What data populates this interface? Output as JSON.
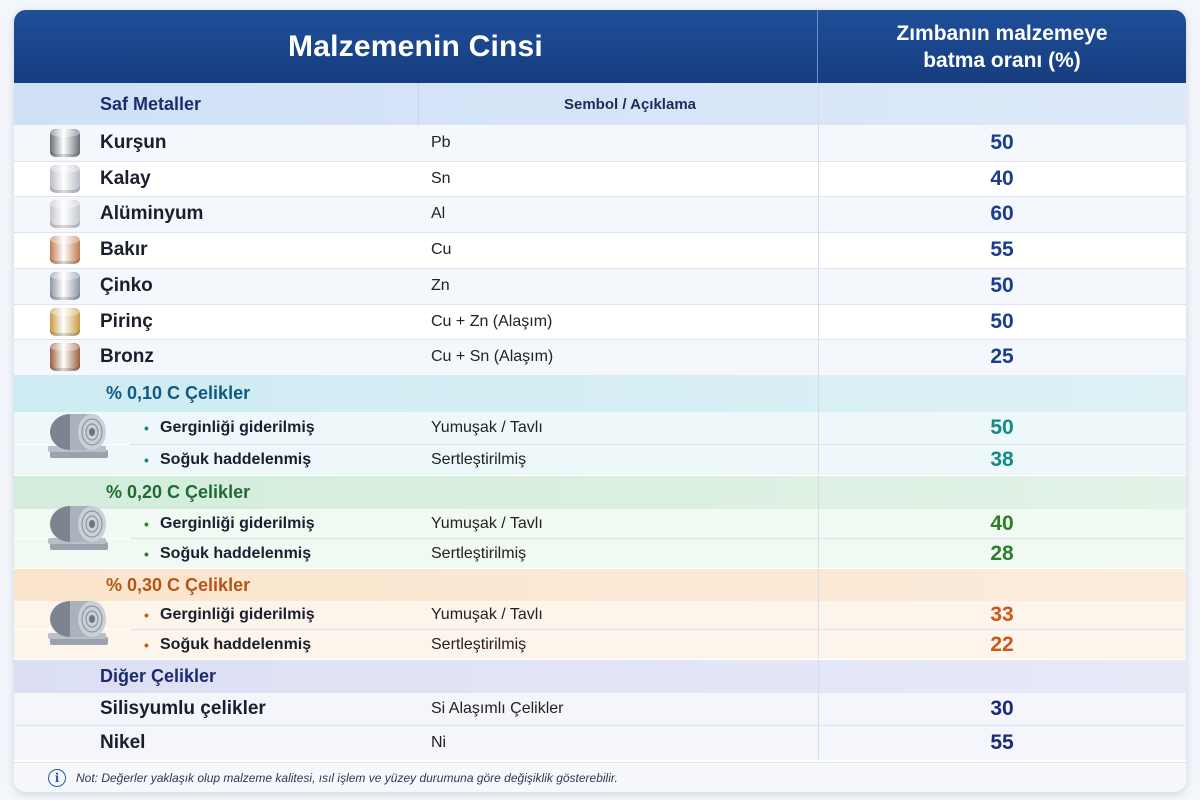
{
  "header": {
    "title": "Malzemenin Cinsi",
    "value_title_line1": "Zımbanın malzemeye",
    "value_title_line2": "batma oranı (%)"
  },
  "pure_metals": {
    "title": "Saf Metaller",
    "symbol_header": "Sembol / Açıklama",
    "rows": [
      {
        "name": "Kurşun",
        "symbol": "Pb",
        "value": "50",
        "icon": "lead-disc-icon",
        "color": "#6b7078"
      },
      {
        "name": "Kalay",
        "symbol": "Sn",
        "value": "40",
        "icon": "tin-disc-icon",
        "color": "#b9bdc4"
      },
      {
        "name": "Alüminyum",
        "symbol": "Al",
        "value": "60",
        "icon": "aluminium-disc-icon",
        "color": "#c4c7cc"
      },
      {
        "name": "Bakır",
        "symbol": "Cu",
        "value": "55",
        "icon": "copper-disc-icon",
        "color": "#c07a4e"
      },
      {
        "name": "Çinko",
        "symbol": "Zn",
        "value": "50",
        "icon": "zinc-disc-icon",
        "color": "#8a96a6"
      },
      {
        "name": "Pirinç",
        "symbol": "Cu + Zn (Alaşım)",
        "value": "50",
        "icon": "brass-disc-icon",
        "color": "#c99a45"
      },
      {
        "name": "Bronz",
        "symbol": "Cu + Sn (Alaşım)",
        "value": "25",
        "icon": "bronze-disc-icon",
        "color": "#9a5f3c"
      }
    ]
  },
  "steel_010": {
    "title": "% 0,10 C Çelikler",
    "color": "#0f5a82",
    "rows": [
      {
        "name": "Gerginliği giderilmiş",
        "symbol": "Yumuşak / Tavlı",
        "value": "50"
      },
      {
        "name": "Soğuk haddelenmiş",
        "symbol": "Sertleştirilmiş",
        "value": "38"
      }
    ]
  },
  "steel_020": {
    "title": "% 0,20 C Çelikler",
    "color": "#1f6b35",
    "rows": [
      {
        "name": "Gerginliği giderilmiş",
        "symbol": "Yumuşak / Tavlı",
        "value": "40"
      },
      {
        "name": "Soğuk haddelenmiş",
        "symbol": "Sertleştirilmiş",
        "value": "28"
      }
    ]
  },
  "steel_030": {
    "title": "% 0,30 C Çelikler",
    "color": "#b3561a",
    "rows": [
      {
        "name": "Gerginliği giderilmiş",
        "symbol": "Yumuşak / Tavlı",
        "value": "33"
      },
      {
        "name": "Soğuk haddelenmiş",
        "symbol": "Sertleştirilmiş",
        "value": "22"
      }
    ]
  },
  "other_steels": {
    "title": "Diğer Çelikler",
    "rows": [
      {
        "name": "Silisyumlu çelikler",
        "symbol": "Si Alaşımlı Çelikler",
        "value": "30"
      },
      {
        "name": "Nikel",
        "symbol": "Ni",
        "value": "55"
      }
    ]
  },
  "note": {
    "icon": "info-icon",
    "text": "Not: Değerler yaklaşık olup malzeme kalitesi, ısıl işlem ve yüzey durumuna göre değişiklik gösterebilir."
  },
  "colors": {
    "header": "#1f4f9a",
    "value_blue": "#1a3e8c",
    "steel_010_value": "#138a8a",
    "steel_020_value": "#2f7d2a",
    "steel_030_value": "#c9581a",
    "other_value": "#1c2a78"
  }
}
